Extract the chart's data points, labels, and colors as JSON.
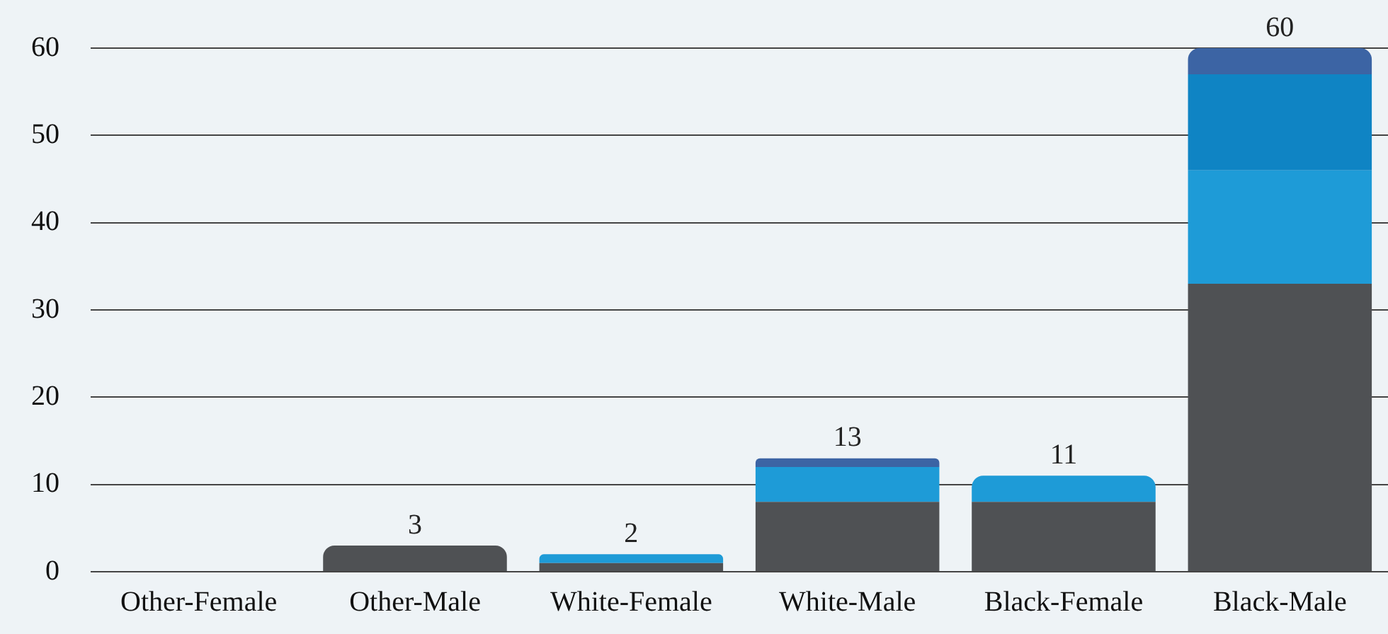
{
  "chart_data": {
    "type": "bar",
    "stacked": true,
    "categories": [
      "Other-Female",
      "Other-Male",
      "White-Female",
      "White-Male",
      "Black-Female",
      "Black-Male"
    ],
    "series": [
      {
        "color": "#4f5154",
        "values": [
          0,
          3,
          1,
          8,
          8,
          33
        ]
      },
      {
        "color": "#1e9bd7",
        "values": [
          0,
          0,
          1,
          4,
          3,
          13
        ]
      },
      {
        "color": "#0f84c4",
        "values": [
          0,
          0,
          0,
          0,
          0,
          11
        ]
      },
      {
        "color": "#3c64a4",
        "values": [
          0,
          0,
          0,
          1,
          0,
          3
        ]
      }
    ],
    "totals": [
      null,
      "3",
      "2",
      "13",
      "11",
      "60"
    ],
    "ylim": [
      0,
      60
    ],
    "yticks": [
      0,
      10,
      20,
      30,
      40,
      50,
      60
    ],
    "grid": "y",
    "legend": false
  }
}
